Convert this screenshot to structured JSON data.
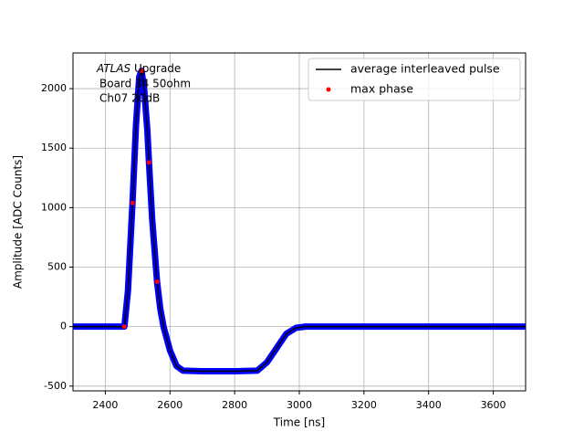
{
  "chart_data": {
    "type": "line",
    "annotation": {
      "italic": "ATLAS",
      "rest": " Upgrade",
      "lines": [
        "Board 34 50ohm",
        "Ch07 20dB"
      ]
    },
    "xlabel": "Time [ns]",
    "ylabel": "Amplitude [ADC Counts]",
    "xlim": [
      2300,
      3700
    ],
    "ylim": [
      -540,
      2300
    ],
    "xticks": [
      2400,
      2600,
      2800,
      3000,
      3200,
      3400,
      3600
    ],
    "yticks": [
      -500,
      0,
      500,
      1000,
      1500,
      2000
    ],
    "grid": true,
    "legend": "upper right",
    "series": [
      {
        "name": "average interleaved pulse",
        "color": "#000000",
        "sample_color": "#0000ff",
        "style": "line",
        "x": [
          2300,
          2459,
          2470,
          2484,
          2495,
          2505,
          2512,
          2520,
          2530,
          2535,
          2545,
          2560,
          2570,
          2580,
          2600,
          2620,
          2640,
          2700,
          2800,
          2870,
          2900,
          2930,
          2960,
          2990,
          3020,
          3700
        ],
        "values": [
          0,
          0,
          300,
          1038,
          1700,
          2100,
          2150,
          2000,
          1650,
          1380,
          900,
          377,
          150,
          0,
          -200,
          -330,
          -370,
          -375,
          -375,
          -370,
          -300,
          -180,
          -60,
          -10,
          0,
          0
        ]
      },
      {
        "name": "max phase",
        "color": "#ff0000",
        "style": "dots",
        "x": [
          2459,
          2484,
          2512,
          2535,
          2560
        ],
        "values": [
          0,
          1038,
          2150,
          1380,
          377
        ]
      }
    ]
  }
}
